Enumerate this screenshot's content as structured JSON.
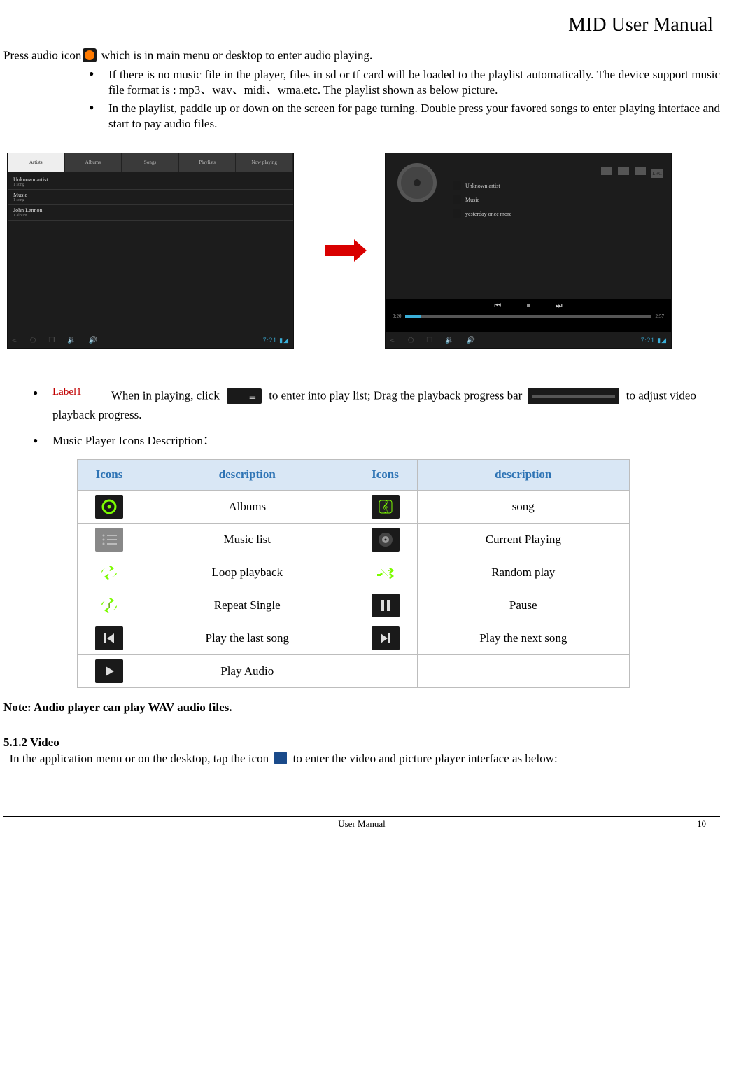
{
  "header": {
    "title": "MID User Manual"
  },
  "intro": {
    "line": " which is in main menu or desktop to enter audio playing.",
    "prefix": "Press audio icon"
  },
  "bullets_top": [
    "If there is no music file in the player, files in sd or tf card will be loaded to the playlist automatically. The device support music file format is : mp3、wav、midi、wma.etc. The playlist shown as below picture.",
    "In the playlist, paddle up or down on the screen for page turning. Double press your favored songs to enter playing interface and start to pay audio files."
  ],
  "screenshot1": {
    "tabs": [
      "Artists",
      "Albums",
      "Songs",
      "Playlists",
      "Now playing"
    ],
    "active_tab": 0,
    "rows": [
      {
        "title": "Unknown artist",
        "sub": "1 song"
      },
      {
        "title": "Music",
        "sub": "1 song"
      },
      {
        "title": "John Lennon",
        "sub": "1 album"
      }
    ],
    "time": "7:21"
  },
  "screenshot2": {
    "toolbar_right": "LRC",
    "rows": [
      "Unknown artist",
      "Music",
      "yesterday once more"
    ],
    "controls": [
      "⏮",
      "⏸",
      "⏭"
    ],
    "time_left": "0:20",
    "time_right": "2:57",
    "time": "7:21"
  },
  "label1": "Label1",
  "bullet_label_text": {
    "part1": "When in playing, click ",
    "part2": " to enter into play list; Drag the playback progress bar ",
    "part3": " to adjust video playback progress."
  },
  "bullet_icons_desc": "Music Player Icons Description：",
  "table": {
    "headers": [
      "Icons",
      "description",
      "Icons",
      "description"
    ],
    "rows": [
      {
        "d1": "Albums",
        "d2": "song",
        "i1": "albums",
        "i2": "song"
      },
      {
        "d1": "Music list",
        "d2": "Current Playing",
        "i1": "musiclist",
        "i2": "current"
      },
      {
        "d1": "Loop playback",
        "d2": "Random play",
        "i1": "loop",
        "i2": "random"
      },
      {
        "d1": "Repeat Single",
        "d2": "Pause",
        "i1": "repeat1",
        "i2": "pause"
      },
      {
        "d1": "Play the last song",
        "d2": "Play the next song",
        "i1": "prev",
        "i2": "next"
      },
      {
        "d1": "Play Audio",
        "d2": "",
        "i1": "play",
        "i2": ""
      }
    ],
    "header_bg": "#d9e7f5",
    "header_color": "#2e74b5",
    "border_color": "#bdbdbd"
  },
  "note": "Note: Audio player can play WAV audio files.",
  "section": {
    "heading": "5.1.2 Video",
    "body_pre": "In the application menu or on the desktop, tap the icon ",
    "body_post": " to enter the video and picture player interface as below:"
  },
  "footer": {
    "center": "User Manual",
    "page": "10"
  }
}
